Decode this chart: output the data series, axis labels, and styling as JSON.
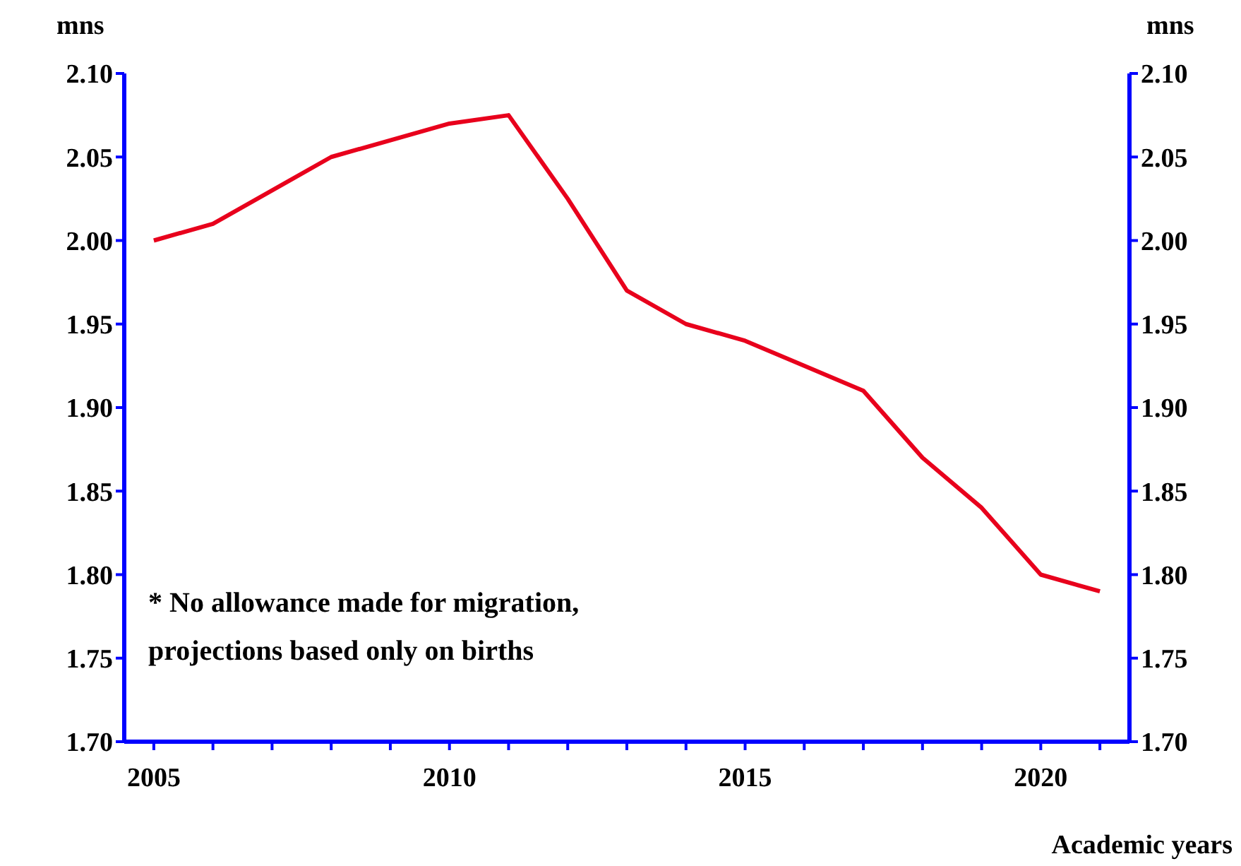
{
  "chart_data": {
    "type": "line",
    "ylabel": "mns",
    "y2label": "mns",
    "xlabel": "Academic years",
    "annotations": [
      "* No allowance made for migration,\nprojections based only on births"
    ],
    "series": [
      {
        "color": "#e8001c",
        "x": [
          2005,
          2006,
          2008,
          2010,
          2011,
          2012,
          2013,
          2014,
          2015,
          2017,
          2018,
          2019,
          2020,
          2021
        ],
        "values": [
          2.0,
          2.01,
          2.05,
          2.07,
          2.075,
          2.025,
          1.97,
          1.95,
          1.94,
          1.91,
          1.87,
          1.84,
          1.8,
          1.79
        ]
      }
    ],
    "xlim": [
      2004.5,
      2021.5
    ],
    "xticks": [
      2005,
      {
        "value": 2006,
        "label": null
      },
      {
        "value": 2007,
        "label": null
      },
      {
        "value": 2008,
        "label": null
      },
      {
        "value": 2009,
        "label": null
      },
      2010,
      {
        "value": 2011,
        "label": null
      },
      {
        "value": 2012,
        "label": null
      },
      {
        "value": 2013,
        "label": null
      },
      {
        "value": 2014,
        "label": null
      },
      2015,
      {
        "value": 2016,
        "label": null
      },
      {
        "value": 2017,
        "label": null
      },
      {
        "value": 2018,
        "label": null
      },
      {
        "value": 2019,
        "label": null
      },
      2020,
      {
        "value": 2021,
        "label": null
      }
    ],
    "ylim": [
      1.7,
      2.1
    ],
    "yticks": [
      {
        "value": 1.7,
        "label": "1.70"
      },
      {
        "value": 1.75,
        "label": "1.75"
      },
      {
        "value": 1.8,
        "label": "1.80"
      },
      {
        "value": 1.85,
        "label": "1.85"
      },
      {
        "value": 1.9,
        "label": "1.90"
      },
      {
        "value": 1.95,
        "label": "1.95"
      },
      {
        "value": 2.0,
        "label": "2.00"
      },
      {
        "value": 2.05,
        "label": "2.05"
      },
      {
        "value": 2.1,
        "label": "2.10"
      }
    ],
    "y2lim": [
      1.7,
      2.1
    ],
    "y2ticks": [
      {
        "value": 1.7,
        "label": "1.70"
      },
      {
        "value": 1.75,
        "label": "1.75"
      },
      {
        "value": 1.8,
        "label": "1.80"
      },
      {
        "value": 1.85,
        "label": "1.85"
      },
      {
        "value": 1.9,
        "label": "1.90"
      },
      {
        "value": 1.95,
        "label": "1.95"
      },
      {
        "value": 2.0,
        "label": "2.00"
      },
      {
        "value": 2.05,
        "label": "2.05"
      },
      {
        "value": 2.1,
        "label": "2.10"
      }
    ],
    "grid": false,
    "legend": false,
    "marker": "none",
    "line_style": "solid"
  }
}
